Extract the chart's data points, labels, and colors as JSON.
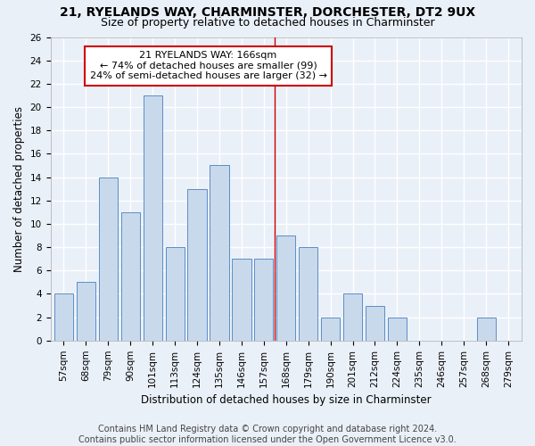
{
  "title": "21, RYELANDS WAY, CHARMINSTER, DORCHESTER, DT2 9UX",
  "subtitle": "Size of property relative to detached houses in Charminster",
  "xlabel": "Distribution of detached houses by size in Charminster",
  "ylabel": "Number of detached properties",
  "bar_labels": [
    "57sqm",
    "68sqm",
    "79sqm",
    "90sqm",
    "101sqm",
    "113sqm",
    "124sqm",
    "135sqm",
    "146sqm",
    "157sqm",
    "168sqm",
    "179sqm",
    "190sqm",
    "201sqm",
    "212sqm",
    "224sqm",
    "235sqm",
    "246sqm",
    "257sqm",
    "268sqm",
    "279sqm"
  ],
  "bar_values": [
    4,
    5,
    14,
    11,
    21,
    8,
    13,
    15,
    7,
    7,
    9,
    8,
    2,
    4,
    3,
    2,
    0,
    0,
    0,
    2,
    0
  ],
  "bar_color": "#c9d9ec",
  "bar_edge_color": "#5b8ec4",
  "property_line_x": 9.5,
  "annotation_text": "21 RYELANDS WAY: 166sqm\n← 74% of detached houses are smaller (99)\n24% of semi-detached houses are larger (32) →",
  "annotation_box_color": "#ffffff",
  "annotation_box_edge": "#cc0000",
  "red_line_color": "#cc0000",
  "ylim": [
    0,
    26
  ],
  "yticks": [
    0,
    2,
    4,
    6,
    8,
    10,
    12,
    14,
    16,
    18,
    20,
    22,
    24,
    26
  ],
  "num_bins": 21,
  "footer_line1": "Contains HM Land Registry data © Crown copyright and database right 2024.",
  "footer_line2": "Contains public sector information licensed under the Open Government Licence v3.0.",
  "bg_color": "#eaf0f8",
  "plot_bg_color": "#eaf0f8",
  "grid_color": "#ffffff",
  "title_fontsize": 10,
  "subtitle_fontsize": 9,
  "axis_label_fontsize": 8.5,
  "tick_fontsize": 7.5,
  "annotation_fontsize": 8,
  "footer_fontsize": 7
}
